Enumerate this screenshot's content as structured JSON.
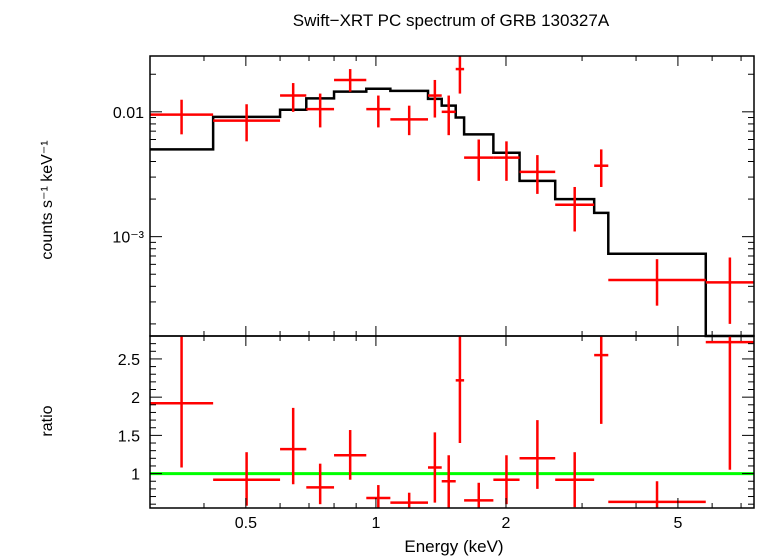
{
  "chart_data": [
    {
      "type": "line",
      "title": "Swift−XRT PC spectrum of GRB 130327A",
      "ylabel": "counts s⁻¹ keV⁻¹",
      "xscale": "log",
      "yscale": "log",
      "xlim": [
        0.3,
        7.5
      ],
      "ylim": [
        0.00016,
        0.028
      ],
      "grid": false,
      "y_ticks": [
        {
          "value": 0.01,
          "label": "0.01"
        },
        {
          "value": 0.001,
          "label": "10⁻³"
        }
      ],
      "colors": {
        "data": "#ff0000",
        "model": "#000000",
        "unity": "#00ff00"
      },
      "series": [
        {
          "role": "data",
          "points": [
            {
              "x0": 0.3,
              "x1": 0.42,
              "y": 0.0095,
              "ylo": 0.0066,
              "yhi": 0.0125
            },
            {
              "x0": 0.42,
              "x1": 0.6,
              "y": 0.0085,
              "ylo": 0.0058,
              "yhi": 0.0115
            },
            {
              "x0": 0.6,
              "x1": 0.69,
              "y": 0.0135,
              "ylo": 0.01,
              "yhi": 0.017
            },
            {
              "x0": 0.69,
              "x1": 0.8,
              "y": 0.0105,
              "ylo": 0.0075,
              "yhi": 0.014
            },
            {
              "x0": 0.8,
              "x1": 0.95,
              "y": 0.018,
              "ylo": 0.0145,
              "yhi": 0.022
            },
            {
              "x0": 0.95,
              "x1": 1.08,
              "y": 0.0105,
              "ylo": 0.0075,
              "yhi": 0.0135
            },
            {
              "x0": 1.08,
              "x1": 1.32,
              "y": 0.0087,
              "ylo": 0.0065,
              "yhi": 0.0112
            },
            {
              "x0": 1.32,
              "x1": 1.42,
              "y": 0.0135,
              "ylo": 0.009,
              "yhi": 0.018
            },
            {
              "x0": 1.42,
              "x1": 1.53,
              "y": 0.01,
              "ylo": 0.0065,
              "yhi": 0.0135
            },
            {
              "x0": 1.53,
              "x1": 1.6,
              "y": 0.022,
              "ylo": 0.014,
              "yhi": 0.028
            },
            {
              "x0": 1.6,
              "x1": 1.87,
              "y": 0.0043,
              "ylo": 0.0028,
              "yhi": 0.006
            },
            {
              "x0": 1.87,
              "x1": 2.15,
              "y": 0.0043,
              "ylo": 0.0028,
              "yhi": 0.0058
            },
            {
              "x0": 2.15,
              "x1": 2.6,
              "y": 0.0033,
              "ylo": 0.0022,
              "yhi": 0.0045
            },
            {
              "x0": 2.6,
              "x1": 3.2,
              "y": 0.0018,
              "ylo": 0.0011,
              "yhi": 0.0025
            },
            {
              "x0": 3.2,
              "x1": 3.45,
              "y": 0.0037,
              "ylo": 0.0025,
              "yhi": 0.005
            },
            {
              "x0": 3.45,
              "x1": 5.8,
              "y": 0.00045,
              "ylo": 0.00028,
              "yhi": 0.00066
            },
            {
              "x0": 5.8,
              "x1": 7.5,
              "y": 0.00043,
              "ylo": 0.0002,
              "yhi": 0.00068
            }
          ]
        },
        {
          "role": "model",
          "steps": [
            {
              "x0": 0.3,
              "x1": 0.42,
              "y": 0.005
            },
            {
              "x0": 0.42,
              "x1": 0.6,
              "y": 0.0091
            },
            {
              "x0": 0.6,
              "x1": 0.69,
              "y": 0.0104
            },
            {
              "x0": 0.69,
              "x1": 0.8,
              "y": 0.0128
            },
            {
              "x0": 0.8,
              "x1": 0.95,
              "y": 0.0145
            },
            {
              "x0": 0.95,
              "x1": 1.08,
              "y": 0.0153
            },
            {
              "x0": 1.08,
              "x1": 1.32,
              "y": 0.0147
            },
            {
              "x0": 1.32,
              "x1": 1.42,
              "y": 0.0127
            },
            {
              "x0": 1.42,
              "x1": 1.53,
              "y": 0.0112
            },
            {
              "x0": 1.53,
              "x1": 1.6,
              "y": 0.009
            },
            {
              "x0": 1.6,
              "x1": 1.87,
              "y": 0.0066
            },
            {
              "x0": 1.87,
              "x1": 2.15,
              "y": 0.0047
            },
            {
              "x0": 2.15,
              "x1": 2.6,
              "y": 0.0028
            },
            {
              "x0": 2.6,
              "x1": 3.2,
              "y": 0.002
            },
            {
              "x0": 3.2,
              "x1": 3.45,
              "y": 0.00155
            },
            {
              "x0": 3.45,
              "x1": 5.8,
              "y": 0.00073
            },
            {
              "x0": 5.8,
              "x1": 7.5,
              "y": 0.00015
            }
          ]
        }
      ]
    },
    {
      "type": "line",
      "xlabel": "Energy (keV)",
      "ylabel": "ratio",
      "xscale": "log",
      "xlim": [
        0.3,
        7.5
      ],
      "ylim": [
        0.55,
        2.8
      ],
      "grid": false,
      "x_ticks": [
        {
          "value": 0.5,
          "label": "0.5"
        },
        {
          "value": 1,
          "label": "1"
        },
        {
          "value": 2,
          "label": "2"
        },
        {
          "value": 5,
          "label": "5"
        }
      ],
      "y_ticks": [
        {
          "value": 1,
          "label": "1"
        },
        {
          "value": 1.5,
          "label": "1.5"
        },
        {
          "value": 2,
          "label": "2"
        },
        {
          "value": 2.5,
          "label": "2.5"
        }
      ],
      "series": [
        {
          "role": "data",
          "points": [
            {
              "x0": 0.3,
              "x1": 0.42,
              "y": 1.92,
              "ylo": 1.08,
              "yhi": 2.8
            },
            {
              "x0": 0.42,
              "x1": 0.6,
              "y": 0.92,
              "ylo": 0.58,
              "yhi": 1.28
            },
            {
              "x0": 0.6,
              "x1": 0.69,
              "y": 1.32,
              "ylo": 0.86,
              "yhi": 1.86
            },
            {
              "x0": 0.69,
              "x1": 0.8,
              "y": 0.82,
              "ylo": 0.6,
              "yhi": 1.13
            },
            {
              "x0": 0.8,
              "x1": 0.95,
              "y": 1.24,
              "ylo": 0.92,
              "yhi": 1.57
            },
            {
              "x0": 0.95,
              "x1": 1.08,
              "y": 0.68,
              "ylo": 0.55,
              "yhi": 0.85
            },
            {
              "x0": 1.08,
              "x1": 1.32,
              "y": 0.62,
              "ylo": 0.55,
              "yhi": 0.75
            },
            {
              "x0": 1.32,
              "x1": 1.42,
              "y": 1.08,
              "ylo": 0.62,
              "yhi": 1.54
            },
            {
              "x0": 1.42,
              "x1": 1.53,
              "y": 0.9,
              "ylo": 0.55,
              "yhi": 1.24
            },
            {
              "x0": 1.53,
              "x1": 1.6,
              "y": 2.22,
              "ylo": 1.4,
              "yhi": 2.8
            },
            {
              "x0": 1.6,
              "x1": 1.87,
              "y": 0.65,
              "ylo": 0.55,
              "yhi": 0.88
            },
            {
              "x0": 1.87,
              "x1": 2.15,
              "y": 0.92,
              "ylo": 0.6,
              "yhi": 1.24
            },
            {
              "x0": 2.15,
              "x1": 2.6,
              "y": 1.2,
              "ylo": 0.8,
              "yhi": 1.7
            },
            {
              "x0": 2.6,
              "x1": 3.2,
              "y": 0.92,
              "ylo": 0.56,
              "yhi": 1.28
            },
            {
              "x0": 3.2,
              "x1": 3.45,
              "y": 2.55,
              "ylo": 1.65,
              "yhi": 2.8
            },
            {
              "x0": 3.45,
              "x1": 5.8,
              "y": 0.63,
              "ylo": 0.55,
              "yhi": 0.9
            },
            {
              "x0": 5.8,
              "x1": 7.5,
              "y": 2.72,
              "ylo": 1.05,
              "yhi": 2.8
            }
          ]
        },
        {
          "role": "unity",
          "y": 1.0
        }
      ]
    }
  ]
}
